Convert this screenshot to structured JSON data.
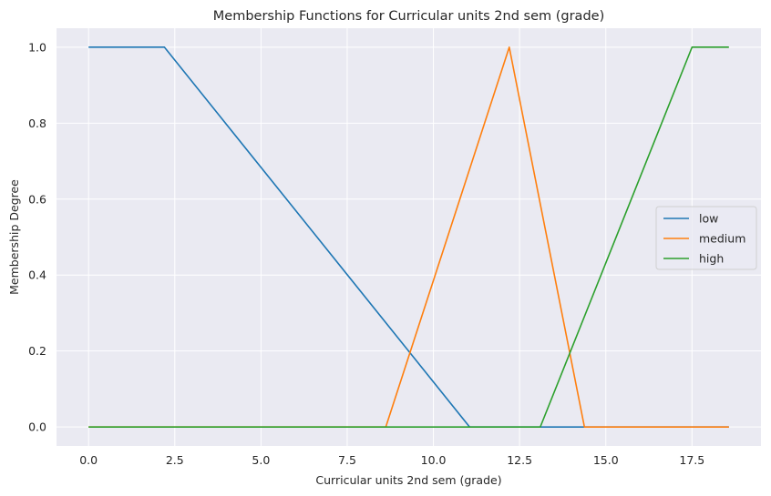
{
  "chart_data": {
    "type": "line",
    "title": "Membership Functions for Curricular units 2nd sem (grade)",
    "xlabel": "Curricular units 2nd sem (grade)",
    "ylabel": "Membership Degree",
    "xlim": [
      -0.93,
      19.5
    ],
    "ylim": [
      -0.05,
      1.05
    ],
    "xticks": [
      0.0,
      2.5,
      5.0,
      7.5,
      10.0,
      12.5,
      15.0,
      17.5
    ],
    "xtick_labels": [
      "0.0",
      "2.5",
      "5.0",
      "7.5",
      "10.0",
      "12.5",
      "15.0",
      "17.5"
    ],
    "yticks": [
      0.0,
      0.2,
      0.4,
      0.6,
      0.8,
      1.0
    ],
    "ytick_labels": [
      "0.0",
      "0.2",
      "0.4",
      "0.6",
      "0.8",
      "1.0"
    ],
    "grid": true,
    "legend_position": "center-right",
    "background_color": "#eaeaf2",
    "series": [
      {
        "name": "low",
        "color": "#1f77b4",
        "x": [
          0.0,
          2.2,
          11.05,
          18.57
        ],
        "y": [
          1,
          1,
          0,
          0
        ]
      },
      {
        "name": "medium",
        "color": "#ff7f0e",
        "x": [
          0.0,
          8.62,
          12.2,
          14.38,
          18.57
        ],
        "y": [
          0,
          0,
          1,
          0,
          0
        ]
      },
      {
        "name": "high",
        "color": "#2ca02c",
        "x": [
          0.0,
          13.1,
          17.5,
          18.57
        ],
        "y": [
          0,
          0,
          1,
          1
        ]
      }
    ]
  }
}
